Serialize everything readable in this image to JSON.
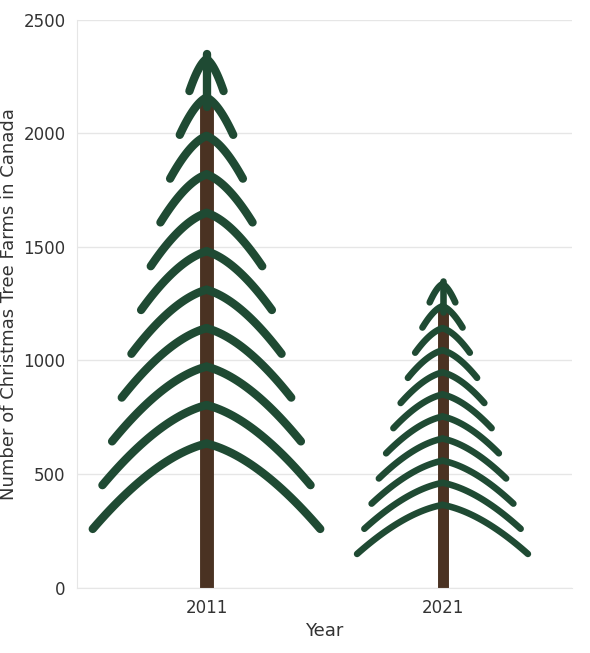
{
  "chart_data": {
    "type": "bar",
    "x_label": "Year",
    "y_label": "Number of Christmas Tree Farms in Canada",
    "categories": [
      "2011",
      "2021"
    ],
    "values": [
      2350,
      1350
    ],
    "color": "#1f4a33",
    "ylim": [
      0,
      2500
    ],
    "yticks": [
      0,
      500,
      1000,
      1500,
      2000,
      2500
    ],
    "grid": true
  }
}
